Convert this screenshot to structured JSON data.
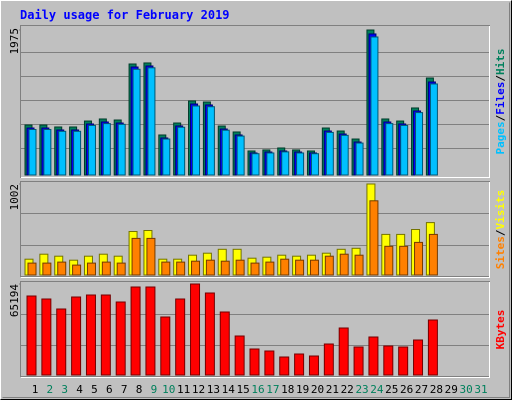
{
  "title": "Daily usage for February 2019",
  "chart_data": [
    {
      "type": "bar",
      "ylim": [
        0,
        1975
      ],
      "yticks": [
        1975
      ],
      "legend_separator": "/",
      "series": [
        {
          "name": "Hits",
          "color": "#00805c",
          "values": [
            681,
            681,
            654,
            654,
            735,
            763,
            749,
            1512,
            1526,
            545,
            708,
            1008,
            994,
            667,
            586,
            327,
            341,
            368,
            341,
            327,
            640,
            599,
            490,
            1975,
            763,
            735,
            913,
            1321,
            null,
            null,
            null
          ]
        },
        {
          "name": "Files",
          "color": "#0000ff",
          "values": [
            640,
            640,
            613,
            613,
            695,
            722,
            708,
            1471,
            1485,
            504,
            668,
            967,
            954,
            626,
            545,
            300,
            313,
            327,
            313,
            300,
            599,
            558,
            449,
            1921,
            722,
            695,
            872,
            1267,
            null,
            null,
            null
          ]
        },
        {
          "name": "Pages",
          "color": "#00c0ff",
          "values": [
            620,
            620,
            595,
            595,
            675,
            700,
            690,
            1440,
            1460,
            490,
            650,
            940,
            930,
            610,
            530,
            290,
            300,
            315,
            300,
            290,
            580,
            540,
            435,
            1880,
            700,
            675,
            850,
            1240,
            null,
            null,
            null
          ]
        }
      ]
    },
    {
      "type": "bar",
      "ylim": [
        0,
        1002
      ],
      "yticks": [
        1002
      ],
      "legend_separator": "/",
      "series": [
        {
          "name": "Visits",
          "color": "#ffff00",
          "values": [
            174,
            229,
            207,
            163,
            207,
            229,
            207,
            479,
            490,
            174,
            174,
            218,
            240,
            283,
            283,
            185,
            196,
            218,
            207,
            218,
            240,
            283,
            294,
            1002,
            447,
            447,
            501,
            577,
            null,
            null,
            null
          ]
        },
        {
          "name": "Sites",
          "color": "#ff8000",
          "values": [
            131,
            131,
            142,
            109,
            131,
            142,
            131,
            403,
            403,
            142,
            142,
            152,
            163,
            152,
            163,
            131,
            142,
            174,
            163,
            163,
            207,
            229,
            218,
            817,
            316,
            316,
            359,
            447,
            null,
            null,
            null
          ]
        }
      ]
    },
    {
      "type": "bar",
      "ylim": [
        0,
        65194
      ],
      "yticks": [
        65194
      ],
      "categories": [
        "1",
        "2",
        "3",
        "4",
        "5",
        "6",
        "7",
        "8",
        "9",
        "10",
        "11",
        "12",
        "13",
        "14",
        "15",
        "16",
        "17",
        "18",
        "19",
        "20",
        "21",
        "22",
        "23",
        "24",
        "25",
        "26",
        "27",
        "28",
        "29",
        "30",
        "31"
      ],
      "category_color": "#000000",
      "weekend_color": "#00805c",
      "weekends": [
        "2",
        "3",
        "9",
        "10",
        "16",
        "17",
        "23",
        "24",
        "30",
        "31"
      ],
      "series": [
        {
          "name": "KBytes",
          "color": "#ff0000",
          "values": [
            56597,
            54448,
            47284,
            55881,
            57314,
            57314,
            52299,
            63045,
            63045,
            41553,
            54448,
            65194,
            58746,
            45134,
            27940,
            18627,
            17194,
            12895,
            15045,
            13612,
            22209,
            33672,
            20060,
            27224,
            20776,
            20060,
            25075,
            39403,
            null,
            null,
            null
          ]
        }
      ]
    }
  ]
}
